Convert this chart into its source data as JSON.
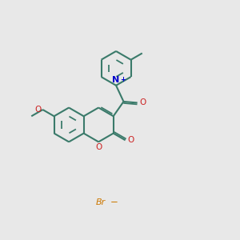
{
  "background_color": "#e8e8e8",
  "bond_color": "#3a7a6a",
  "bond_width": 1.5,
  "oxygen_color": "#cc2222",
  "nitrogen_color": "#0000cc",
  "bromine_color": "#cc7700",
  "font_size": 7.5,
  "xlim": [
    0,
    10
  ],
  "ylim": [
    0,
    10
  ]
}
